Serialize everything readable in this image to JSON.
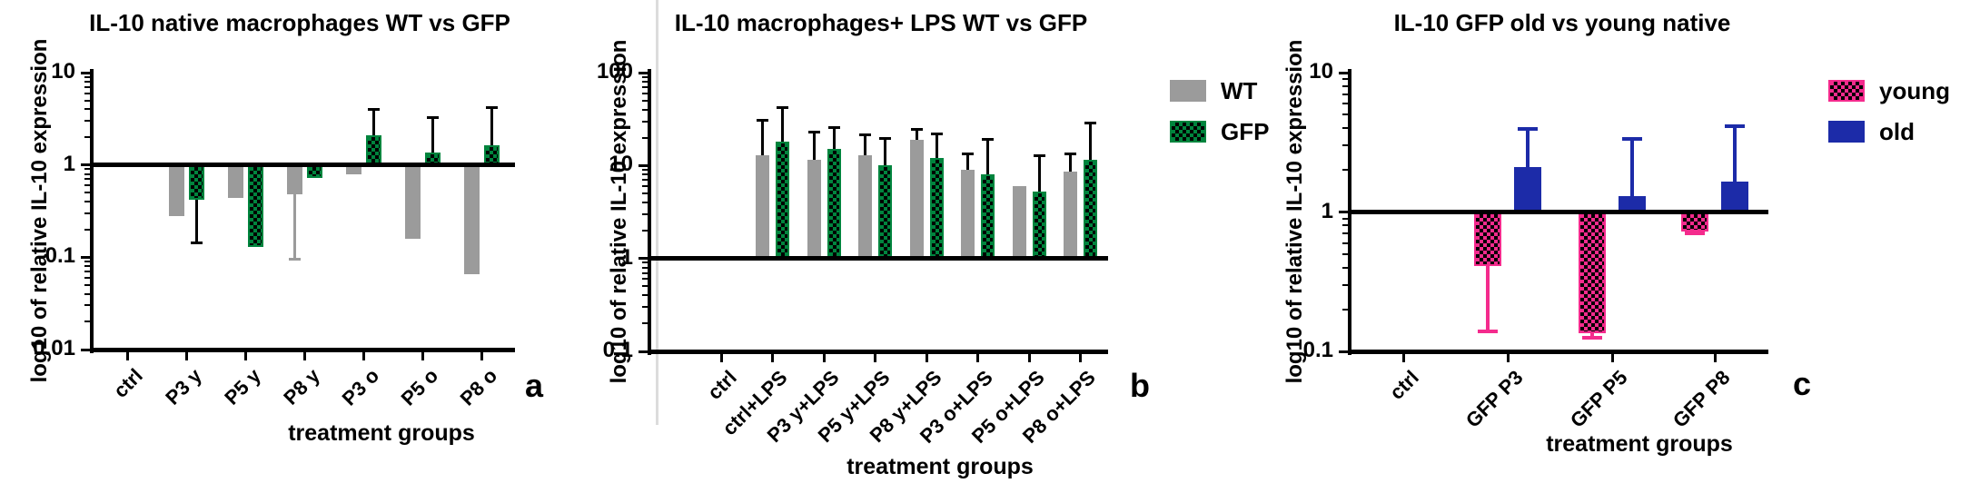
{
  "chart_data": [
    {
      "type": "bar",
      "panel_label": "a",
      "title": "IL-10 native macrophages WT vs GFP",
      "ylabel": "log10 of relative IL-10 expression",
      "xlabel": "treatment groups",
      "yscale": "log10",
      "ylim": [
        0.01,
        10
      ],
      "y_tick_labels": [
        "10",
        "1",
        "0.1",
        "0.01"
      ],
      "baseline": 1,
      "grid": false,
      "legend_position": "none",
      "categories": [
        "ctrl",
        "P3 y",
        "P5 y",
        "P8 y",
        "P3 o",
        "P5 o",
        "P8 o"
      ],
      "series": [
        {
          "name": "WT",
          "color": "#9b9b9b",
          "pattern": "solid",
          "err_color": "#9b9b9b",
          "values": [
            null,
            0.28,
            0.44,
            0.48,
            0.8,
            0.16,
            0.065
          ],
          "err_tips": [
            null,
            null,
            null,
            0.095,
            null,
            null,
            null
          ]
        },
        {
          "name": "GFP",
          "color": "#00843D",
          "pattern": "checker",
          "err_color": "#000000",
          "values": [
            null,
            0.42,
            0.13,
            0.72,
            2.1,
            1.35,
            1.65
          ],
          "err_tips": [
            null,
            0.14,
            null,
            null,
            4.0,
            3.3,
            4.2
          ]
        }
      ],
      "legend": null
    },
    {
      "type": "bar",
      "panel_label": "b",
      "title": "IL-10 macrophages+ LPS WT vs GFP",
      "ylabel": "log10 of relative IL-10 expression",
      "xlabel": "treatment groups",
      "yscale": "log10",
      "ylim": [
        0.1,
        100
      ],
      "y_tick_labels": [
        "100",
        "10",
        "1",
        "0.1"
      ],
      "baseline": 1,
      "grid": false,
      "legend_position": "right-of-plot",
      "categories": [
        "ctrl",
        "ctrl+LPS",
        "P3 y+LPS",
        "P5 y+LPS",
        "P8 y+LPS",
        "P3 o+LPS",
        "P5 o+LPS",
        "P8 o+LPS"
      ],
      "series": [
        {
          "name": "WT",
          "color": "#9b9b9b",
          "pattern": "solid",
          "err_color": "#000000",
          "values": [
            null,
            13,
            11.5,
            13,
            19,
            9,
            6,
            8.7
          ],
          "err_tips": [
            null,
            31,
            23,
            21.5,
            25,
            13.5,
            null,
            13.5
          ]
        },
        {
          "name": "GFP",
          "color": "#00843D",
          "pattern": "checker",
          "err_color": "#000000",
          "values": [
            null,
            18,
            15,
            10,
            12,
            8,
            5.2,
            11.5
          ],
          "err_tips": [
            null,
            43,
            26,
            20,
            22,
            19.5,
            13,
            29
          ]
        }
      ],
      "legend": {
        "items": [
          {
            "label": "WT",
            "color": "#9b9b9b",
            "pattern": "solid"
          },
          {
            "label": "GFP",
            "color": "#00843D",
            "pattern": "checker"
          }
        ]
      }
    },
    {
      "type": "bar",
      "panel_label": "c",
      "title": "IL-10 GFP old vs young native",
      "ylabel": "log10 of relative IL-10 expression",
      "xlabel": "treatment groups",
      "yscale": "log10",
      "ylim": [
        0.1,
        10
      ],
      "y_tick_labels": [
        "10",
        "1",
        "0.1"
      ],
      "baseline": 1,
      "grid": false,
      "legend_position": "right-of-plot",
      "categories": [
        "ctrl",
        "GFP P3",
        "GFP P5",
        "GFP P8"
      ],
      "series": [
        {
          "name": "young",
          "color": "#F42B8D",
          "pattern": "checker",
          "err_color": "#F42B8D",
          "values": [
            null,
            0.41,
            0.135,
            0.72
          ],
          "err_tips": [
            null,
            0.14,
            0.125,
            0.7
          ]
        },
        {
          "name": "old",
          "color": "#1C2BA8",
          "pattern": "solid",
          "err_color": "#1C2BA8",
          "values": [
            null,
            2.1,
            1.3,
            1.65
          ],
          "err_tips": [
            null,
            4.0,
            3.4,
            4.2
          ]
        }
      ],
      "legend": {
        "items": [
          {
            "label": "young",
            "color": "#F42B8D",
            "pattern": "checker"
          },
          {
            "label": "old",
            "color": "#1C2BA8",
            "pattern": "solid"
          }
        ]
      }
    }
  ]
}
